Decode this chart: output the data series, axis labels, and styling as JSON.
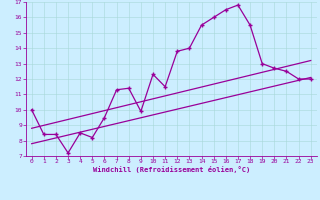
{
  "xlabel": "Windchill (Refroidissement éolien,°C)",
  "ylabel": "",
  "xlim": [
    -0.5,
    23.5
  ],
  "ylim": [
    7,
    17
  ],
  "yticks": [
    7,
    8,
    9,
    10,
    11,
    12,
    13,
    14,
    15,
    16,
    17
  ],
  "xticks": [
    0,
    1,
    2,
    3,
    4,
    5,
    6,
    7,
    8,
    9,
    10,
    11,
    12,
    13,
    14,
    15,
    16,
    17,
    18,
    19,
    20,
    21,
    22,
    23
  ],
  "bg_color": "#cceeff",
  "line_color": "#990099",
  "line1_x": [
    0,
    1,
    2,
    3,
    4,
    5,
    6,
    7,
    8,
    9,
    10,
    11,
    12,
    13,
    14,
    15,
    16,
    17,
    18,
    19,
    20,
    21,
    22,
    23
  ],
  "line1_y": [
    10.0,
    8.4,
    8.4,
    7.2,
    8.5,
    8.2,
    9.5,
    11.3,
    11.4,
    9.9,
    12.3,
    11.5,
    13.8,
    14.0,
    15.5,
    16.0,
    16.5,
    16.8,
    15.5,
    13.0,
    12.7,
    12.5,
    12.0,
    12.0
  ],
  "line2_x": [
    0,
    23
  ],
  "line2_y": [
    8.8,
    13.2
  ],
  "line3_x": [
    0,
    23
  ],
  "line3_y": [
    7.8,
    12.1
  ],
  "marker": "+"
}
